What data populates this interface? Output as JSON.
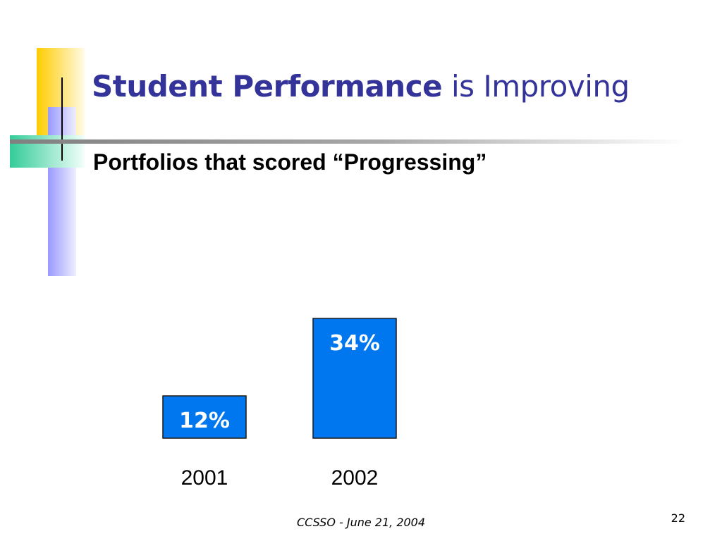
{
  "slide": {
    "title_bold": "Student Performance",
    "title_rest": " is Improving",
    "subtitle": "Portfolios that scored “Progressing”",
    "footer": "CCSSO - June 21, 2004",
    "page_number": "22"
  },
  "colors": {
    "title": "#333399",
    "bar_fill": "#0077ee",
    "bar_stroke": "#1a1a1a",
    "deco_yellow": "#ffcc00",
    "deco_blue": "#9999ff",
    "deco_green": "#33cc99"
  },
  "chart_data": {
    "type": "bar",
    "categories": [
      "2001",
      "2002"
    ],
    "values": [
      12,
      34
    ],
    "data_labels": [
      "12%",
      "34%"
    ],
    "unit": "%",
    "ylim": [
      0,
      34
    ],
    "grid": false,
    "legend": "none"
  }
}
